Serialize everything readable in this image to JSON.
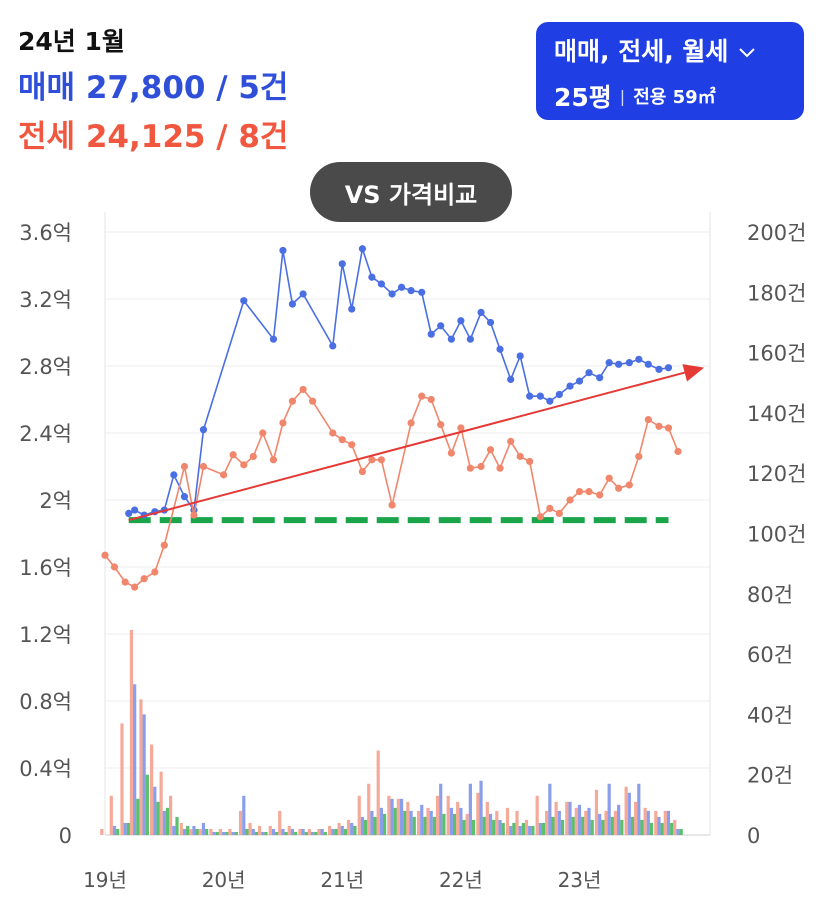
{
  "header": {
    "period": "24년 1월",
    "sale_summary": "매매 27,800 / 5건",
    "jeonse_summary": "전세 24,125 / 8건"
  },
  "filter": {
    "types": "매매, 전세, 월세",
    "pyeong": "25평",
    "exclusive_area": "전용 59㎡"
  },
  "compare_button": "VS 가격비교",
  "chart_data": {
    "type": "line",
    "price_axis": {
      "ticks": [
        "0",
        "0.4억",
        "0.8억",
        "1.2억",
        "1.6억",
        "2억",
        "2.4억",
        "2.8억",
        "3.2억",
        "3.6억"
      ],
      "ylim": [
        0,
        3.6
      ]
    },
    "count_axis": {
      "ticks": [
        "0",
        "20건",
        "40건",
        "60건",
        "80건",
        "100건",
        "120건",
        "140건",
        "160건",
        "180건",
        "200건"
      ],
      "ylim": [
        0,
        200
      ]
    },
    "x_ticks": [
      {
        "label": "19년",
        "x": 2019.0
      },
      {
        "label": "20년",
        "x": 2020.0
      },
      {
        "label": "21년",
        "x": 2021.0
      },
      {
        "label": "22년",
        "x": 2022.0
      },
      {
        "label": "23년",
        "x": 2023.0
      }
    ],
    "xlim": [
      2019.0,
      2024.1
    ],
    "series": [
      {
        "name": "매매",
        "color": "#4a6fe3",
        "points": [
          [
            2019.2,
            1.92
          ],
          [
            2019.25,
            1.94
          ],
          [
            2019.33,
            1.91
          ],
          [
            2019.42,
            1.93
          ],
          [
            2019.5,
            1.94
          ],
          [
            2019.58,
            2.15
          ],
          [
            2019.67,
            2.02
          ],
          [
            2019.75,
            1.94
          ],
          [
            2019.83,
            2.42
          ],
          [
            2020.17,
            3.19
          ],
          [
            2020.42,
            2.96
          ],
          [
            2020.5,
            3.49
          ],
          [
            2020.58,
            3.17
          ],
          [
            2020.67,
            3.23
          ],
          [
            2020.92,
            2.92
          ],
          [
            2021.0,
            3.41
          ],
          [
            2021.08,
            3.14
          ],
          [
            2021.17,
            3.5
          ],
          [
            2021.25,
            3.33
          ],
          [
            2021.33,
            3.29
          ],
          [
            2021.42,
            3.23
          ],
          [
            2021.5,
            3.27
          ],
          [
            2021.58,
            3.25
          ],
          [
            2021.67,
            3.24
          ],
          [
            2021.75,
            2.99
          ],
          [
            2021.83,
            3.04
          ],
          [
            2021.92,
            2.96
          ],
          [
            2022.0,
            3.07
          ],
          [
            2022.08,
            2.96
          ],
          [
            2022.17,
            3.12
          ],
          [
            2022.25,
            3.06
          ],
          [
            2022.33,
            2.9
          ],
          [
            2022.42,
            2.72
          ],
          [
            2022.5,
            2.86
          ],
          [
            2022.58,
            2.62
          ],
          [
            2022.67,
            2.62
          ],
          [
            2022.75,
            2.59
          ],
          [
            2022.83,
            2.63
          ],
          [
            2022.92,
            2.68
          ],
          [
            2023.0,
            2.71
          ],
          [
            2023.08,
            2.76
          ],
          [
            2023.17,
            2.73
          ],
          [
            2023.25,
            2.82
          ],
          [
            2023.33,
            2.81
          ],
          [
            2023.42,
            2.82
          ],
          [
            2023.5,
            2.84
          ],
          [
            2023.58,
            2.81
          ],
          [
            2023.67,
            2.78
          ],
          [
            2023.75,
            2.79
          ]
        ]
      },
      {
        "name": "전세",
        "color": "#f0866b",
        "points": [
          [
            2019.0,
            1.67
          ],
          [
            2019.08,
            1.6
          ],
          [
            2019.17,
            1.51
          ],
          [
            2019.25,
            1.48
          ],
          [
            2019.33,
            1.53
          ],
          [
            2019.42,
            1.57
          ],
          [
            2019.5,
            1.73
          ],
          [
            2019.67,
            2.2
          ],
          [
            2019.75,
            1.91
          ],
          [
            2019.83,
            2.2
          ],
          [
            2020.0,
            2.15
          ],
          [
            2020.08,
            2.27
          ],
          [
            2020.17,
            2.21
          ],
          [
            2020.25,
            2.26
          ],
          [
            2020.33,
            2.4
          ],
          [
            2020.42,
            2.24
          ],
          [
            2020.5,
            2.46
          ],
          [
            2020.58,
            2.59
          ],
          [
            2020.67,
            2.66
          ],
          [
            2020.75,
            2.59
          ],
          [
            2020.92,
            2.4
          ],
          [
            2021.0,
            2.36
          ],
          [
            2021.08,
            2.33
          ],
          [
            2021.17,
            2.17
          ],
          [
            2021.25,
            2.24
          ],
          [
            2021.33,
            2.24
          ],
          [
            2021.42,
            1.97
          ],
          [
            2021.58,
            2.46
          ],
          [
            2021.67,
            2.62
          ],
          [
            2021.75,
            2.6
          ],
          [
            2021.83,
            2.45
          ],
          [
            2021.92,
            2.28
          ],
          [
            2022.0,
            2.43
          ],
          [
            2022.08,
            2.19
          ],
          [
            2022.17,
            2.2
          ],
          [
            2022.25,
            2.3
          ],
          [
            2022.33,
            2.19
          ],
          [
            2022.42,
            2.35
          ],
          [
            2022.5,
            2.26
          ],
          [
            2022.58,
            2.23
          ],
          [
            2022.67,
            1.9
          ],
          [
            2022.75,
            1.95
          ],
          [
            2022.83,
            1.92
          ],
          [
            2022.92,
            2.0
          ],
          [
            2023.0,
            2.05
          ],
          [
            2023.08,
            2.05
          ],
          [
            2023.17,
            2.03
          ],
          [
            2023.25,
            2.13
          ],
          [
            2023.33,
            2.07
          ],
          [
            2023.42,
            2.09
          ],
          [
            2023.5,
            2.26
          ],
          [
            2023.58,
            2.48
          ],
          [
            2023.67,
            2.44
          ],
          [
            2023.75,
            2.43
          ],
          [
            2023.83,
            2.29
          ]
        ]
      }
    ],
    "trend_line": {
      "color": "#e53935",
      "from": [
        2019.2,
        1.88
      ],
      "to": [
        2024.05,
        2.79
      ]
    },
    "reference_line": {
      "color": "#1aa54a",
      "from": [
        2019.2,
        1.88
      ],
      "to": [
        2023.75,
        1.88
      ]
    },
    "volume_bars": {
      "unit": "건",
      "sale_color": "#7d93ea",
      "jeonse_color": "#f4a18e",
      "wolse_color": "#49b85b",
      "months": [
        2019.0,
        2019.08,
        2019.17,
        2019.25,
        2019.33,
        2019.42,
        2019.5,
        2019.58,
        2019.67,
        2019.75,
        2019.83,
        2019.92,
        2020.0,
        2020.08,
        2020.17,
        2020.25,
        2020.33,
        2020.42,
        2020.5,
        2020.58,
        2020.67,
        2020.75,
        2020.83,
        2020.92,
        2021.0,
        2021.08,
        2021.17,
        2021.25,
        2021.33,
        2021.42,
        2021.5,
        2021.58,
        2021.67,
        2021.75,
        2021.83,
        2021.92,
        2022.0,
        2022.08,
        2022.17,
        2022.25,
        2022.33,
        2022.42,
        2022.5,
        2022.58,
        2022.67,
        2022.75,
        2022.83,
        2022.92,
        2023.0,
        2023.08,
        2023.17,
        2023.25,
        2023.33,
        2023.42,
        2023.5,
        2023.58,
        2023.67,
        2023.75,
        2023.83
      ],
      "sale": [
        0,
        3,
        4,
        50,
        40,
        16,
        8,
        3,
        2,
        3,
        4,
        1,
        1,
        1,
        13,
        2,
        1,
        2,
        2,
        2,
        2,
        1,
        2,
        2,
        3,
        4,
        6,
        8,
        9,
        12,
        12,
        8,
        10,
        8,
        17,
        9,
        9,
        17,
        18,
        7,
        5,
        3,
        3,
        3,
        4,
        17,
        8,
        11,
        10,
        9,
        7,
        17,
        10,
        14,
        17,
        8,
        6,
        8,
        2
      ],
      "jeonse": [
        2,
        13,
        37,
        68,
        45,
        30,
        21,
        13,
        4,
        2,
        2,
        2,
        2,
        2,
        8,
        4,
        3,
        3,
        8,
        3,
        2,
        2,
        2,
        3,
        4,
        5,
        13,
        17,
        28,
        13,
        12,
        11,
        8,
        9,
        13,
        13,
        11,
        7,
        14,
        11,
        8,
        9,
        8,
        5,
        13,
        8,
        11,
        11,
        9,
        8,
        15,
        8,
        8,
        16,
        11,
        9,
        8,
        8,
        5
      ],
      "wolse": [
        0,
        2,
        4,
        12,
        20,
        11,
        9,
        6,
        3,
        2,
        2,
        1,
        1,
        1,
        2,
        1,
        1,
        1,
        1,
        1,
        1,
        1,
        1,
        2,
        2,
        3,
        5,
        6,
        7,
        9,
        8,
        6,
        6,
        6,
        7,
        7,
        5,
        5,
        6,
        5,
        4,
        4,
        4,
        3,
        4,
        6,
        5,
        6,
        6,
        5,
        5,
        6,
        5,
        6,
        5,
        4,
        4,
        4,
        2
      ]
    }
  }
}
